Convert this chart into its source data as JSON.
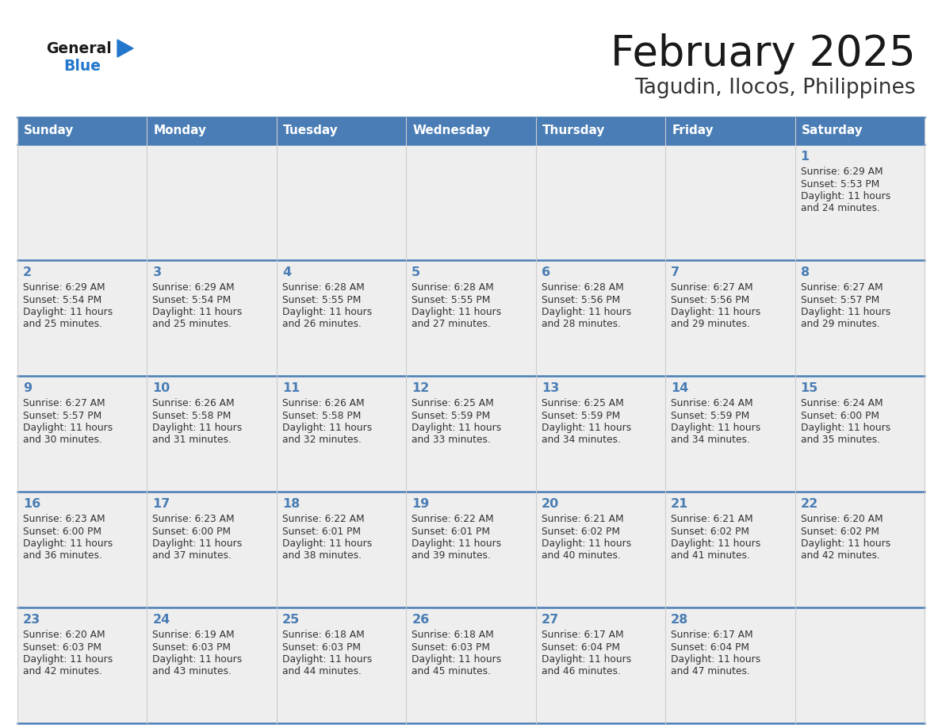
{
  "title": "February 2025",
  "subtitle": "Tagudin, Ilocos, Philippines",
  "days_of_week": [
    "Sunday",
    "Monday",
    "Tuesday",
    "Wednesday",
    "Thursday",
    "Friday",
    "Saturday"
  ],
  "header_bg": "#4a7db5",
  "header_text": "#ffffff",
  "row_bg": "#eeeeee",
  "cell_border_color": "#4a7db5",
  "cell_border_thin": "#cccccc",
  "day_num_color": "#4a7db5",
  "info_color": "#333333",
  "title_color": "#1a1a1a",
  "subtitle_color": "#333333",
  "logo_general_color": "#1a1a1a",
  "logo_blue_color": "#2277cc",
  "calendar": [
    [
      null,
      null,
      null,
      null,
      null,
      null,
      {
        "day": 1,
        "sunrise": "6:29 AM",
        "sunset": "5:53 PM",
        "daylight": "11 hours and 24 minutes."
      }
    ],
    [
      {
        "day": 2,
        "sunrise": "6:29 AM",
        "sunset": "5:54 PM",
        "daylight": "11 hours and 25 minutes."
      },
      {
        "day": 3,
        "sunrise": "6:29 AM",
        "sunset": "5:54 PM",
        "daylight": "11 hours and 25 minutes."
      },
      {
        "day": 4,
        "sunrise": "6:28 AM",
        "sunset": "5:55 PM",
        "daylight": "11 hours and 26 minutes."
      },
      {
        "day": 5,
        "sunrise": "6:28 AM",
        "sunset": "5:55 PM",
        "daylight": "11 hours and 27 minutes."
      },
      {
        "day": 6,
        "sunrise": "6:28 AM",
        "sunset": "5:56 PM",
        "daylight": "11 hours and 28 minutes."
      },
      {
        "day": 7,
        "sunrise": "6:27 AM",
        "sunset": "5:56 PM",
        "daylight": "11 hours and 29 minutes."
      },
      {
        "day": 8,
        "sunrise": "6:27 AM",
        "sunset": "5:57 PM",
        "daylight": "11 hours and 29 minutes."
      }
    ],
    [
      {
        "day": 9,
        "sunrise": "6:27 AM",
        "sunset": "5:57 PM",
        "daylight": "11 hours and 30 minutes."
      },
      {
        "day": 10,
        "sunrise": "6:26 AM",
        "sunset": "5:58 PM",
        "daylight": "11 hours and 31 minutes."
      },
      {
        "day": 11,
        "sunrise": "6:26 AM",
        "sunset": "5:58 PM",
        "daylight": "11 hours and 32 minutes."
      },
      {
        "day": 12,
        "sunrise": "6:25 AM",
        "sunset": "5:59 PM",
        "daylight": "11 hours and 33 minutes."
      },
      {
        "day": 13,
        "sunrise": "6:25 AM",
        "sunset": "5:59 PM",
        "daylight": "11 hours and 34 minutes."
      },
      {
        "day": 14,
        "sunrise": "6:24 AM",
        "sunset": "5:59 PM",
        "daylight": "11 hours and 34 minutes."
      },
      {
        "day": 15,
        "sunrise": "6:24 AM",
        "sunset": "6:00 PM",
        "daylight": "11 hours and 35 minutes."
      }
    ],
    [
      {
        "day": 16,
        "sunrise": "6:23 AM",
        "sunset": "6:00 PM",
        "daylight": "11 hours and 36 minutes."
      },
      {
        "day": 17,
        "sunrise": "6:23 AM",
        "sunset": "6:00 PM",
        "daylight": "11 hours and 37 minutes."
      },
      {
        "day": 18,
        "sunrise": "6:22 AM",
        "sunset": "6:01 PM",
        "daylight": "11 hours and 38 minutes."
      },
      {
        "day": 19,
        "sunrise": "6:22 AM",
        "sunset": "6:01 PM",
        "daylight": "11 hours and 39 minutes."
      },
      {
        "day": 20,
        "sunrise": "6:21 AM",
        "sunset": "6:02 PM",
        "daylight": "11 hours and 40 minutes."
      },
      {
        "day": 21,
        "sunrise": "6:21 AM",
        "sunset": "6:02 PM",
        "daylight": "11 hours and 41 minutes."
      },
      {
        "day": 22,
        "sunrise": "6:20 AM",
        "sunset": "6:02 PM",
        "daylight": "11 hours and 42 minutes."
      }
    ],
    [
      {
        "day": 23,
        "sunrise": "6:20 AM",
        "sunset": "6:03 PM",
        "daylight": "11 hours and 42 minutes."
      },
      {
        "day": 24,
        "sunrise": "6:19 AM",
        "sunset": "6:03 PM",
        "daylight": "11 hours and 43 minutes."
      },
      {
        "day": 25,
        "sunrise": "6:18 AM",
        "sunset": "6:03 PM",
        "daylight": "11 hours and 44 minutes."
      },
      {
        "day": 26,
        "sunrise": "6:18 AM",
        "sunset": "6:03 PM",
        "daylight": "11 hours and 45 minutes."
      },
      {
        "day": 27,
        "sunrise": "6:17 AM",
        "sunset": "6:04 PM",
        "daylight": "11 hours and 46 minutes."
      },
      {
        "day": 28,
        "sunrise": "6:17 AM",
        "sunset": "6:04 PM",
        "daylight": "11 hours and 47 minutes."
      },
      null
    ]
  ]
}
